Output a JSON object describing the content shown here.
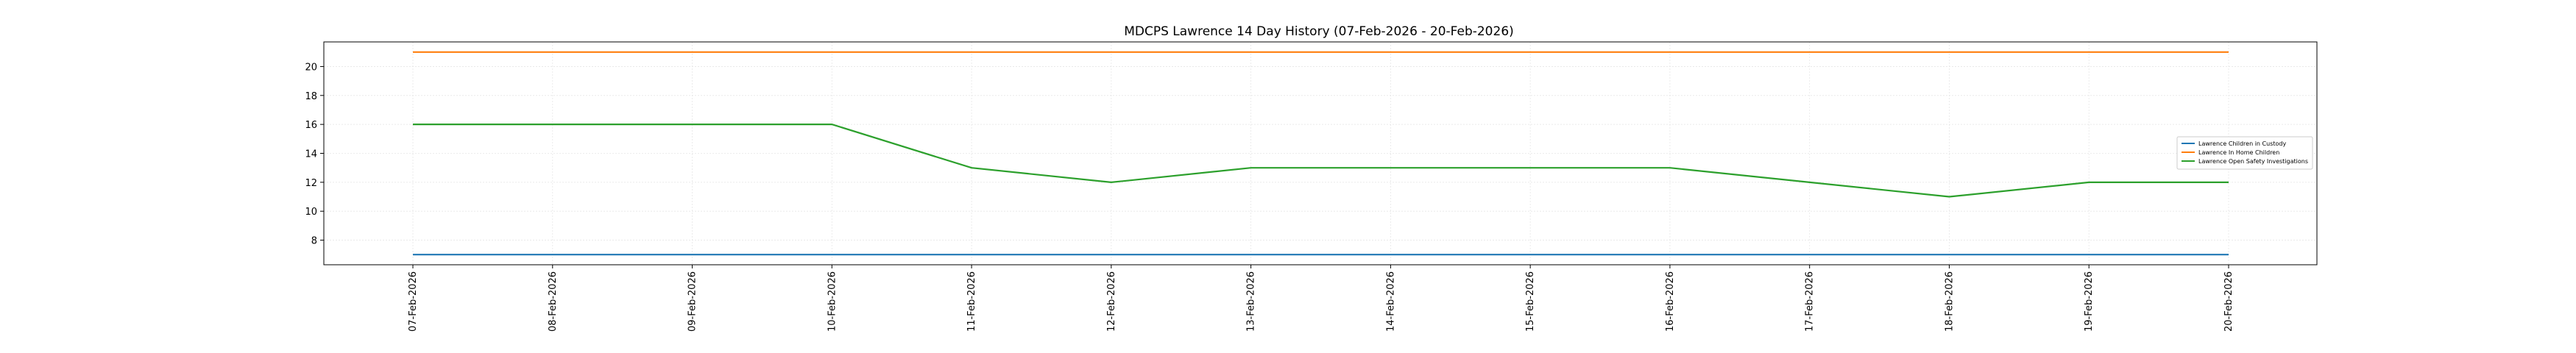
{
  "chart_data": {
    "type": "line",
    "title": "MDCPS Lawrence 14 Day History (07-Feb-2026 - 20-Feb-2026)",
    "xlabel": "",
    "ylabel": "",
    "categories": [
      "07-Feb-2026",
      "08-Feb-2026",
      "09-Feb-2026",
      "10-Feb-2026",
      "11-Feb-2026",
      "12-Feb-2026",
      "13-Feb-2026",
      "14-Feb-2026",
      "15-Feb-2026",
      "16-Feb-2026",
      "17-Feb-2026",
      "18-Feb-2026",
      "19-Feb-2026",
      "20-Feb-2026"
    ],
    "yticks": [
      8,
      10,
      12,
      14,
      16,
      18,
      20
    ],
    "ylim": [
      6.3,
      21.7
    ],
    "grid": true,
    "legend_position": "right",
    "series": [
      {
        "name": "Lawrence Children in Custody",
        "color": "#1f77b4",
        "values": [
          7,
          7,
          7,
          7,
          7,
          7,
          7,
          7,
          7,
          7,
          7,
          7,
          7,
          7
        ]
      },
      {
        "name": "Lawrence In Home Children",
        "color": "#ff7f0e",
        "values": [
          21,
          21,
          21,
          21,
          21,
          21,
          21,
          21,
          21,
          21,
          21,
          21,
          21,
          21
        ]
      },
      {
        "name": "Lawrence Open Safety Investigations",
        "color": "#2ca02c",
        "values": [
          16,
          16,
          16,
          16,
          13,
          12,
          13,
          13,
          13,
          13,
          12,
          11,
          12,
          12
        ]
      }
    ]
  }
}
